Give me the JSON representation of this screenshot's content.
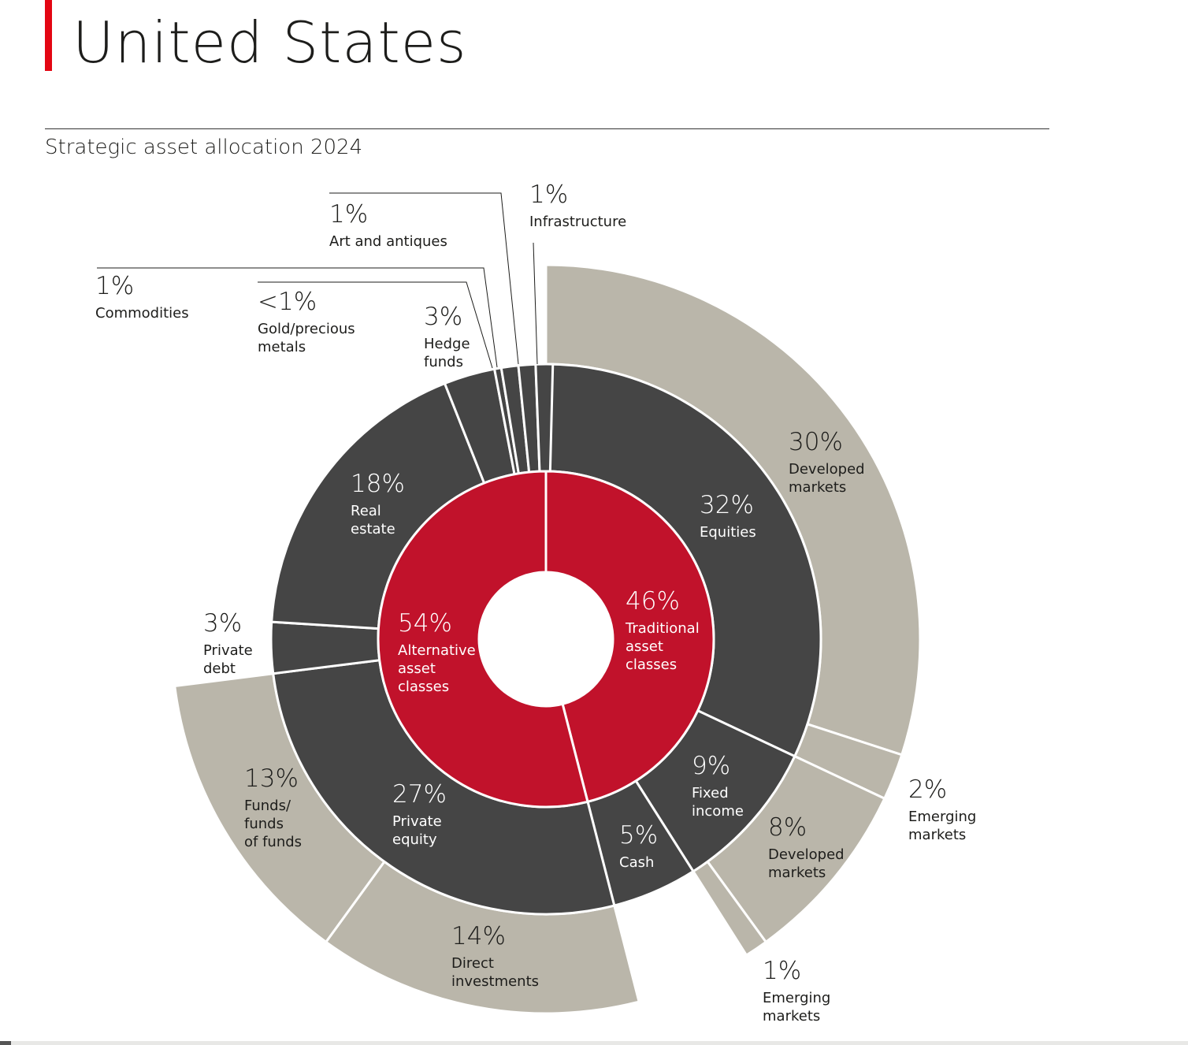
{
  "page": {
    "title": "United States",
    "subtitle": "Strategic asset allocation 2024"
  },
  "colors": {
    "accent": "#e30613",
    "inner": "#c1122b",
    "middle": "#454545",
    "outer": "#bab6aa",
    "background": "#ffffff",
    "text": "#1d1d1b"
  },
  "chart_data": {
    "type": "sunburst",
    "title": "Strategic asset allocation 2024",
    "rings": {
      "inner": [
        {
          "id": "traditional",
          "pct": 46,
          "value": "46%",
          "label": [
            "Traditional",
            "asset",
            "classes"
          ]
        },
        {
          "id": "alternative",
          "pct": 54,
          "value": "54%",
          "label": [
            "Alternative",
            "asset",
            "classes"
          ]
        }
      ],
      "middle": [
        {
          "id": "equities",
          "parent": "traditional",
          "pct": 32,
          "value": "32%",
          "label": [
            "Equities"
          ]
        },
        {
          "id": "fixed-income",
          "parent": "traditional",
          "pct": 9,
          "value": "9%",
          "label": [
            "Fixed",
            "income"
          ]
        },
        {
          "id": "cash",
          "parent": "traditional",
          "pct": 5,
          "value": "5%",
          "label": [
            "Cash"
          ]
        },
        {
          "id": "private-equity",
          "parent": "alternative",
          "pct": 27,
          "value": "27%",
          "label": [
            "Private",
            "equity"
          ]
        },
        {
          "id": "private-debt",
          "parent": "alternative",
          "pct": 3,
          "value": "3%",
          "label": [
            "Private",
            "debt"
          ]
        },
        {
          "id": "real-estate",
          "parent": "alternative",
          "pct": 18,
          "value": "18%",
          "label": [
            "Real",
            "estate"
          ]
        },
        {
          "id": "hedge-funds",
          "parent": "alternative",
          "pct": 3,
          "value": "3%",
          "label": [
            "Hedge",
            "funds"
          ]
        },
        {
          "id": "gold-precious-metals",
          "parent": "alternative",
          "pct": 0.4,
          "value": "<1%",
          "label": [
            "Gold/precious",
            "metals"
          ]
        },
        {
          "id": "commodities",
          "parent": "alternative",
          "pct": 1,
          "value": "1%",
          "label": [
            "Commodities"
          ]
        },
        {
          "id": "art-and-antiques",
          "parent": "alternative",
          "pct": 1,
          "value": "1%",
          "label": [
            "Art and antiques"
          ]
        },
        {
          "id": "infrastructure",
          "parent": "alternative",
          "pct": 1,
          "value": "1%",
          "label": [
            "Infrastructure"
          ]
        }
      ],
      "outer": [
        {
          "id": "eq-developed",
          "parent": "equities",
          "pct": 30,
          "value": "30%",
          "label": [
            "Developed",
            "markets"
          ]
        },
        {
          "id": "eq-emerging",
          "parent": "equities",
          "pct": 2,
          "value": "2%",
          "label": [
            "Emerging",
            "markets"
          ]
        },
        {
          "id": "fi-developed",
          "parent": "fixed-income",
          "pct": 8,
          "value": "8%",
          "label": [
            "Developed",
            "markets"
          ]
        },
        {
          "id": "fi-emerging",
          "parent": "fixed-income",
          "pct": 1,
          "value": "1%",
          "label": [
            "Emerging",
            "markets"
          ]
        },
        {
          "id": "pe-direct",
          "parent": "private-equity",
          "pct": 14,
          "value": "14%",
          "label": [
            "Direct",
            "investments"
          ]
        },
        {
          "id": "pe-funds",
          "parent": "private-equity",
          "pct": 13,
          "value": "13%",
          "label": [
            "Funds/",
            "funds",
            "of funds"
          ]
        }
      ]
    }
  }
}
